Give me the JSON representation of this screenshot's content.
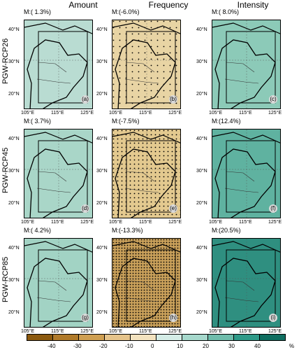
{
  "columns": [
    "Amount",
    "Frequency",
    "Intensity"
  ],
  "rows": [
    {
      "label": "PGW-RCP26",
      "panels": [
        {
          "mean": "M:( 1.3%)",
          "letter": "(a)",
          "fill": "#b9dcd2",
          "stipple": "none"
        },
        {
          "mean": "M:(-6.0%)",
          "letter": "(b)",
          "fill": "#e8d4a4",
          "stipple": "light"
        },
        {
          "mean": "M:( 8.0%)",
          "letter": "(c)",
          "fill": "#8ccab8",
          "stipple": "none"
        }
      ]
    },
    {
      "label": "PGW-RCP45",
      "panels": [
        {
          "mean": "M:( 3.7%)",
          "letter": "(d)",
          "fill": "#a9d6c8",
          "stipple": "none"
        },
        {
          "mean": "M:(-7.5%)",
          "letter": "(e)",
          "fill": "#e3c98f",
          "stipple": "medium"
        },
        {
          "mean": "M:(12.4%)",
          "letter": "(f)",
          "fill": "#5fb2a0",
          "stipple": "none"
        }
      ]
    },
    {
      "label": "PGW-RCP85",
      "panels": [
        {
          "mean": "M:( 4.2%)",
          "letter": "(g)",
          "fill": "#a2d3c4",
          "stipple": "none"
        },
        {
          "mean": "M:(-13.3%)",
          "letter": "(h)",
          "fill": "#c9a05a",
          "stipple": "heavy"
        },
        {
          "mean": "M:(20.5%)",
          "letter": "(i)",
          "fill": "#2f8f80",
          "stipple": "none"
        }
      ]
    }
  ],
  "lat_ticks": [
    "40°N",
    "30°N",
    "20°N"
  ],
  "lon_ticks": [
    "105°E",
    "115°E",
    "125°E"
  ],
  "colorbar": {
    "labels": [
      "-40",
      "-30",
      "-20",
      "-10",
      "0",
      "10",
      "20",
      "30",
      "40"
    ],
    "unit": "%",
    "colors": [
      "#8c5a0f",
      "#b07a2a",
      "#cf9f52",
      "#e5c38a",
      "#f2e2bf",
      "#d4ece6",
      "#a6d8cc",
      "#6fbcab",
      "#2f9a88",
      "#0f6e60"
    ]
  }
}
